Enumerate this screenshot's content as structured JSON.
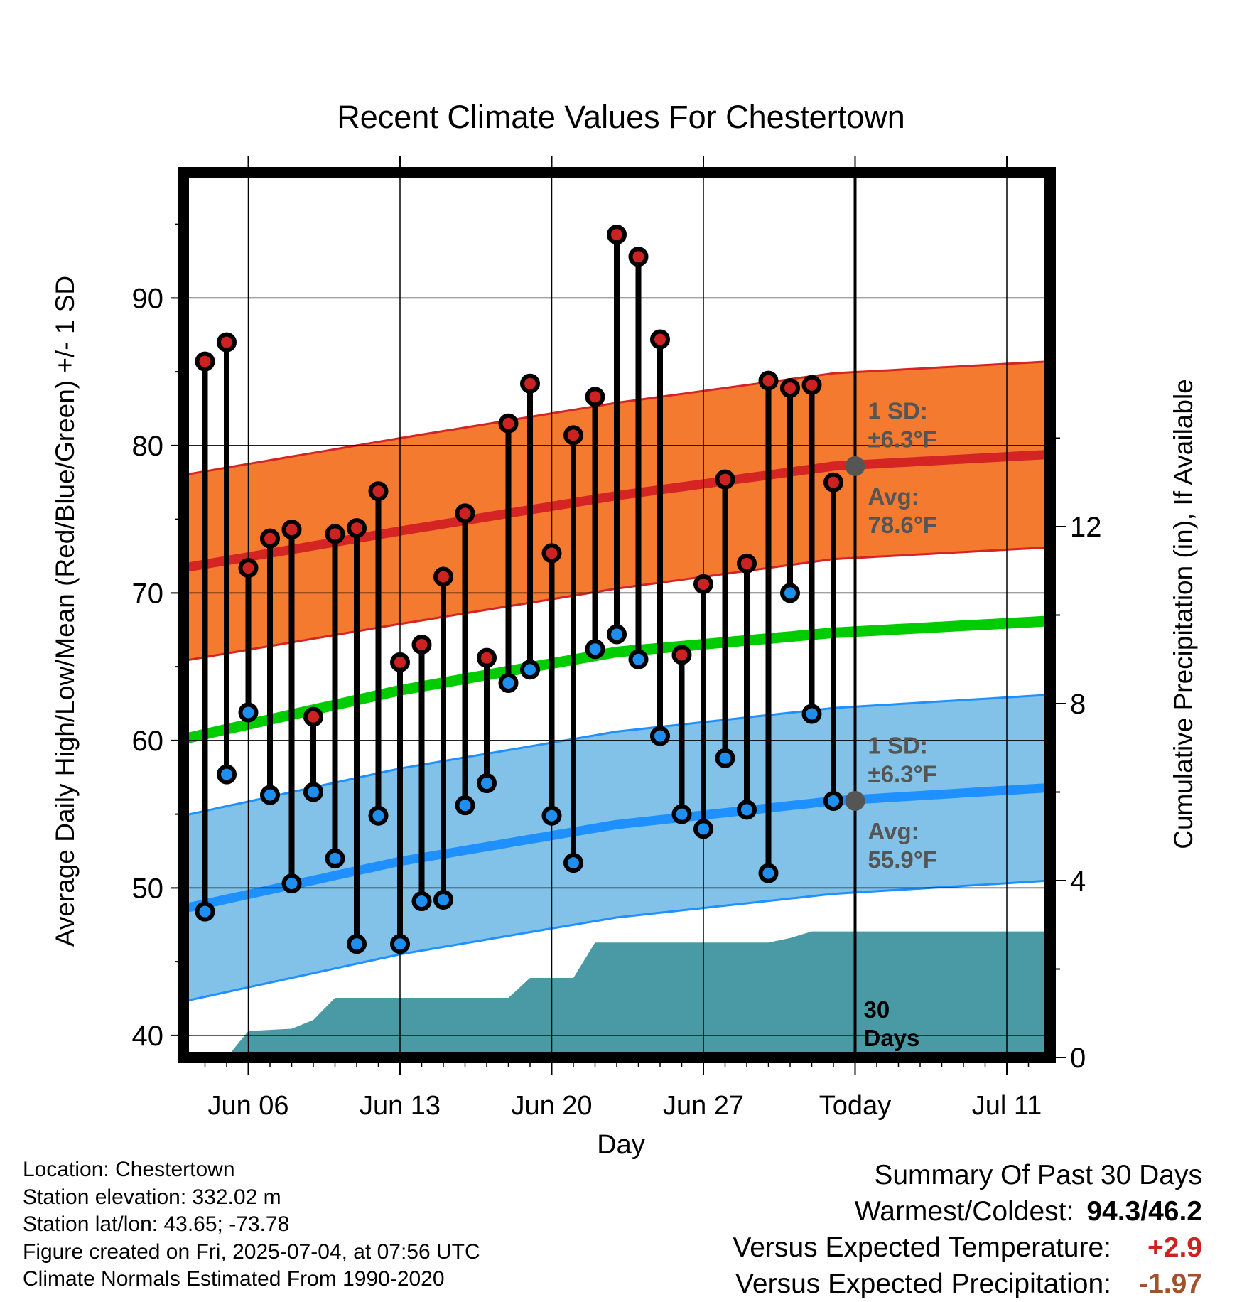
{
  "chart_data": {
    "type": "line",
    "title": "Recent Climate Values For Chestertown",
    "xlabel": "Day",
    "ylabel": "Average Daily High/Low/Mean (Red/Blue/Green) +/- 1 SD",
    "y2label": "Cumulative Precipitation (in), If Available",
    "ylim": [
      38.5,
      98.5
    ],
    "y2lim": [
      0,
      20
    ],
    "yticks": [
      40,
      50,
      60,
      70,
      80,
      90
    ],
    "y2ticks": [
      0,
      4,
      8,
      12
    ],
    "x_dates": [
      "2025-06-03",
      "2025-07-13"
    ],
    "xticks": [
      {
        "date": "2025-06-06",
        "label": "Jun 06"
      },
      {
        "date": "2025-06-13",
        "label": "Jun 13"
      },
      {
        "date": "2025-06-20",
        "label": "Jun 20"
      },
      {
        "date": "2025-06-27",
        "label": "Jun 27"
      },
      {
        "date": "2025-07-04",
        "label": "Today"
      },
      {
        "date": "2025-07-11",
        "label": "Jul 11"
      }
    ],
    "grid": true,
    "today_date": "2025-07-04",
    "today_label": "30 Days",
    "daily": {
      "dates": [
        "2025-06-04",
        "2025-06-05",
        "2025-06-06",
        "2025-06-07",
        "2025-06-08",
        "2025-06-09",
        "2025-06-10",
        "2025-06-11",
        "2025-06-12",
        "2025-06-13",
        "2025-06-14",
        "2025-06-15",
        "2025-06-16",
        "2025-06-17",
        "2025-06-18",
        "2025-06-19",
        "2025-06-20",
        "2025-06-21",
        "2025-06-22",
        "2025-06-23",
        "2025-06-24",
        "2025-06-25",
        "2025-06-26",
        "2025-06-27",
        "2025-06-28",
        "2025-06-29",
        "2025-06-30",
        "2025-07-01",
        "2025-07-02",
        "2025-07-03"
      ],
      "high": [
        85.7,
        87.0,
        71.7,
        73.7,
        74.3,
        61.6,
        74.0,
        74.4,
        76.9,
        65.3,
        66.5,
        71.1,
        75.4,
        65.6,
        81.5,
        84.2,
        72.7,
        80.7,
        83.3,
        94.3,
        92.8,
        87.2,
        65.8,
        70.6,
        77.7,
        72.0,
        84.4,
        83.9,
        84.1,
        77.5
      ],
      "low": [
        48.4,
        57.7,
        61.9,
        56.3,
        50.3,
        56.5,
        52.0,
        46.2,
        54.9,
        46.2,
        49.1,
        49.2,
        55.6,
        57.1,
        63.9,
        64.8,
        54.9,
        51.7,
        66.2,
        67.2,
        65.5,
        60.3,
        55.0,
        54.0,
        58.8,
        55.3,
        51.0,
        70.0,
        61.8,
        55.9
      ]
    },
    "normals": {
      "dates": [
        "2025-06-03",
        "2025-06-13",
        "2025-06-23",
        "2025-07-03",
        "2025-07-13"
      ],
      "high_avg": [
        71.7,
        74.2,
        76.6,
        78.6,
        79.4
      ],
      "high_sd": 6.3,
      "low_avg": [
        48.6,
        51.8,
        54.3,
        55.9,
        56.8
      ],
      "low_sd": 6.3,
      "mean_avg": [
        60.1,
        63.4,
        66.0,
        67.3,
        68.1
      ]
    },
    "precip": {
      "dates": [
        "2025-06-05",
        "2025-06-06",
        "2025-06-08",
        "2025-06-09",
        "2025-06-10",
        "2025-06-18",
        "2025-06-19",
        "2025-06-21",
        "2025-06-22",
        "2025-06-30",
        "2025-07-01",
        "2025-07-02",
        "2025-07-13"
      ],
      "cumulative": [
        0.0,
        0.6,
        0.65,
        0.85,
        1.35,
        1.35,
        1.8,
        1.8,
        2.6,
        2.6,
        2.7,
        2.85,
        2.85
      ]
    },
    "annotations": {
      "high_sd_label_1": "1 SD:",
      "high_sd_label_2": "±6.3°F",
      "high_avg_label_1": "Avg:",
      "high_avg_label_2": "78.6°F",
      "low_sd_label_1": "1 SD:",
      "low_sd_label_2": "±6.3°F",
      "low_avg_label_1": "Avg:",
      "low_avg_label_2": "55.9°F",
      "days_label_1": "30",
      "days_label_2": "Days",
      "high_avg_today": 78.6,
      "low_avg_today": 55.9
    },
    "colors": {
      "high_band": "#f47a30",
      "high_line": "#d42424",
      "low_band": "#82c2e8",
      "low_line": "#1e90ff",
      "mean_line": "#00cc00",
      "precip": "#4a9aa5",
      "high_dot": "#cc2222",
      "low_dot": "#1e8fef",
      "annotation": "#555555"
    }
  },
  "info": {
    "location": "Location: Chestertown",
    "elevation": "Station elevation: 332.02 m",
    "latlon": "Station lat/lon: 43.65; -73.78",
    "created": "Figure created on Fri, 2025-07-04, at 07:56 UTC",
    "normals": "Climate Normals Estimated From 1990-2020"
  },
  "summary": {
    "heading": "Summary Of Past 30 Days",
    "warm_cold_label": "Warmest/Coldest:",
    "warm_cold_value": "94.3/46.2",
    "temp_label": "Versus Expected Temperature:",
    "temp_value": "+2.9",
    "temp_color": "#cc2222",
    "precip_label": "Versus Expected Precipitation:",
    "precip_value": "-1.97",
    "precip_color": "#a0522d"
  }
}
